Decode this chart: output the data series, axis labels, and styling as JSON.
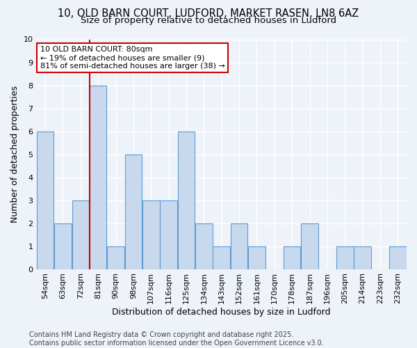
{
  "title_line1": "10, OLD BARN COURT, LUDFORD, MARKET RASEN, LN8 6AZ",
  "title_line2": "Size of property relative to detached houses in Ludford",
  "xlabel": "Distribution of detached houses by size in Ludford",
  "ylabel": "Number of detached properties",
  "categories": [
    "54sqm",
    "63sqm",
    "72sqm",
    "81sqm",
    "90sqm",
    "98sqm",
    "107sqm",
    "116sqm",
    "125sqm",
    "134sqm",
    "143sqm",
    "152sqm",
    "161sqm",
    "170sqm",
    "178sqm",
    "187sqm",
    "196sqm",
    "205sqm",
    "214sqm",
    "223sqm",
    "232sqm"
  ],
  "values": [
    6,
    2,
    3,
    8,
    1,
    5,
    3,
    3,
    6,
    2,
    1,
    2,
    1,
    0,
    1,
    2,
    0,
    1,
    1,
    0,
    1
  ],
  "bar_color": "#c9d9ed",
  "bar_edge_color": "#5b9bd5",
  "highlight_bar_index": 3,
  "highlight_line_color": "#cc0000",
  "highlight_box_color": "#cc0000",
  "annotation_line1": "10 OLD BARN COURT: 80sqm",
  "annotation_line2": "← 19% of detached houses are smaller (9)",
  "annotation_line3": "81% of semi-detached houses are larger (38) →",
  "annotation_fontsize": 8,
  "ylim": [
    0,
    10
  ],
  "yticks": [
    0,
    1,
    2,
    3,
    4,
    5,
    6,
    7,
    8,
    9,
    10
  ],
  "background_color": "#eef3f9",
  "plot_bg_color": "#eef3f9",
  "grid_color": "#ffffff",
  "footer_text": "Contains HM Land Registry data © Crown copyright and database right 2025.\nContains public sector information licensed under the Open Government Licence v3.0.",
  "title_fontsize": 10.5,
  "subtitle_fontsize": 9.5,
  "axis_label_fontsize": 9,
  "tick_fontsize": 8,
  "footer_fontsize": 7
}
